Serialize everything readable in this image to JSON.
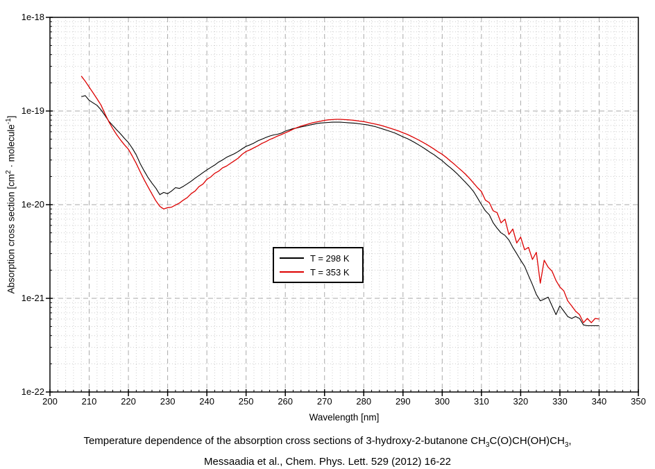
{
  "axes": {
    "x_label": "Wavelength [nm]",
    "y_label_segments": [
      {
        "t": "Absorption cross section [cm"
      },
      {
        "t": "2",
        "sup": true
      },
      {
        "t": " · molecule"
      },
      {
        "t": "-1",
        "sup": true
      },
      {
        "t": "]"
      }
    ],
    "x_ticks": [
      200,
      210,
      220,
      230,
      240,
      250,
      260,
      270,
      280,
      290,
      300,
      310,
      320,
      330,
      340,
      350
    ],
    "y_ticks": [
      {
        "label": "1e-18",
        "value": 1e-18
      },
      {
        "label": "1e-19",
        "value": 1e-19
      },
      {
        "label": "1e-20",
        "value": 1e-20
      },
      {
        "label": "1e-21",
        "value": 1e-21
      },
      {
        "label": "1e-22",
        "value": 1e-22
      }
    ]
  },
  "legend": {
    "items": [
      {
        "label": "T = 298 K",
        "color": "#000000"
      },
      {
        "label": "T = 353 K",
        "color": "#dd0000"
      }
    ]
  },
  "caption": {
    "line1_segments": [
      {
        "t": "Temperature dependence of the absorption cross sections of 3-hydroxy-2-butanone CH"
      },
      {
        "t": "3",
        "sub": true
      },
      {
        "t": "C(O)CH(OH)CH"
      },
      {
        "t": "3",
        "sub": true
      },
      {
        "t": ","
      }
    ],
    "line2": "Messaadia et al., Chem. Phys. Lett. 529 (2012) 16-22"
  },
  "colors": {
    "background": "#ffffff",
    "axis": "#000000",
    "grid_major": "#aaaaaa",
    "grid_minor": "#cccccc",
    "series_298k": "#000000",
    "series_353k": "#dd0000"
  },
  "chart_data": {
    "type": "line",
    "title": "",
    "xlabel": "Wavelength [nm]",
    "ylabel": "Absorption cross section [cm^2 · molecule^-1]",
    "x_range": [
      200,
      350
    ],
    "y_range": [
      1e-22,
      1e-18
    ],
    "y_scale": "log",
    "x_major_step": 10,
    "x_minor_step": 2,
    "grid": "major dashed + minor dotted, both axes",
    "legend_position": "inside plot, center-left box",
    "y_value_unit": 1e-20,
    "series": [
      {
        "name": "T = 298 K",
        "color": "#000000",
        "x_start": 208,
        "x_step": 1,
        "y_in_units": [
          14.2,
          14.6,
          13.0,
          12.2,
          11.5,
          10.3,
          9.0,
          7.8,
          7.0,
          6.3,
          5.7,
          5.1,
          4.6,
          4.0,
          3.4,
          2.75,
          2.3,
          1.95,
          1.7,
          1.5,
          1.28,
          1.35,
          1.31,
          1.4,
          1.52,
          1.49,
          1.57,
          1.67,
          1.78,
          1.92,
          2.05,
          2.2,
          2.35,
          2.5,
          2.65,
          2.85,
          3.0,
          3.2,
          3.35,
          3.5,
          3.7,
          3.95,
          4.2,
          4.35,
          4.55,
          4.8,
          5.0,
          5.2,
          5.4,
          5.55,
          5.65,
          5.8,
          6.1,
          6.3,
          6.5,
          6.6,
          6.75,
          6.9,
          7.05,
          7.2,
          7.35,
          7.45,
          7.5,
          7.55,
          7.6,
          7.6,
          7.6,
          7.55,
          7.5,
          7.45,
          7.4,
          7.3,
          7.2,
          7.1,
          6.95,
          6.8,
          6.6,
          6.4,
          6.2,
          6.0,
          5.8,
          5.55,
          5.3,
          5.1,
          4.85,
          4.6,
          4.35,
          4.1,
          3.85,
          3.6,
          3.4,
          3.15,
          2.95,
          2.7,
          2.5,
          2.3,
          2.1,
          1.9,
          1.72,
          1.55,
          1.38,
          1.18,
          1.0,
          0.86,
          0.78,
          0.64,
          0.56,
          0.5,
          0.47,
          0.42,
          0.35,
          0.3,
          0.255,
          0.22,
          0.175,
          0.14,
          0.11,
          0.094,
          0.098,
          0.103,
          0.083,
          0.067,
          0.083,
          0.073,
          0.064,
          0.061,
          0.064,
          0.061,
          0.052,
          0.051,
          0.051,
          0.051,
          0.051
        ]
      },
      {
        "name": "T = 353 K",
        "color": "#dd0000",
        "x_start": 208,
        "x_step": 1,
        "y_in_units": [
          23.6,
          20.8,
          18.0,
          15.6,
          13.5,
          11.6,
          9.4,
          7.7,
          6.5,
          5.6,
          4.9,
          4.35,
          3.9,
          3.3,
          2.75,
          2.25,
          1.85,
          1.55,
          1.3,
          1.1,
          0.96,
          0.9,
          0.93,
          0.94,
          0.99,
          1.04,
          1.12,
          1.19,
          1.31,
          1.4,
          1.56,
          1.66,
          1.86,
          1.98,
          2.16,
          2.28,
          2.47,
          2.58,
          2.76,
          2.94,
          3.14,
          3.45,
          3.7,
          3.85,
          4.05,
          4.25,
          4.5,
          4.7,
          4.95,
          5.15,
          5.4,
          5.6,
          5.85,
          6.1,
          6.4,
          6.65,
          6.9,
          7.1,
          7.3,
          7.5,
          7.65,
          7.8,
          7.95,
          8.05,
          8.1,
          8.15,
          8.15,
          8.1,
          8.05,
          8.0,
          7.9,
          7.8,
          7.7,
          7.55,
          7.4,
          7.25,
          7.1,
          6.9,
          6.7,
          6.5,
          6.3,
          6.1,
          5.85,
          5.65,
          5.4,
          5.15,
          4.9,
          4.65,
          4.4,
          4.15,
          3.9,
          3.65,
          3.45,
          3.2,
          2.95,
          2.72,
          2.5,
          2.3,
          2.1,
          1.9,
          1.7,
          1.52,
          1.38,
          1.12,
          1.05,
          0.86,
          0.82,
          0.64,
          0.7,
          0.48,
          0.55,
          0.39,
          0.45,
          0.33,
          0.35,
          0.26,
          0.31,
          0.145,
          0.255,
          0.215,
          0.195,
          0.155,
          0.132,
          0.12,
          0.094,
          0.083,
          0.073,
          0.067,
          0.055,
          0.061,
          0.055,
          0.061,
          0.06
        ]
      }
    ]
  }
}
